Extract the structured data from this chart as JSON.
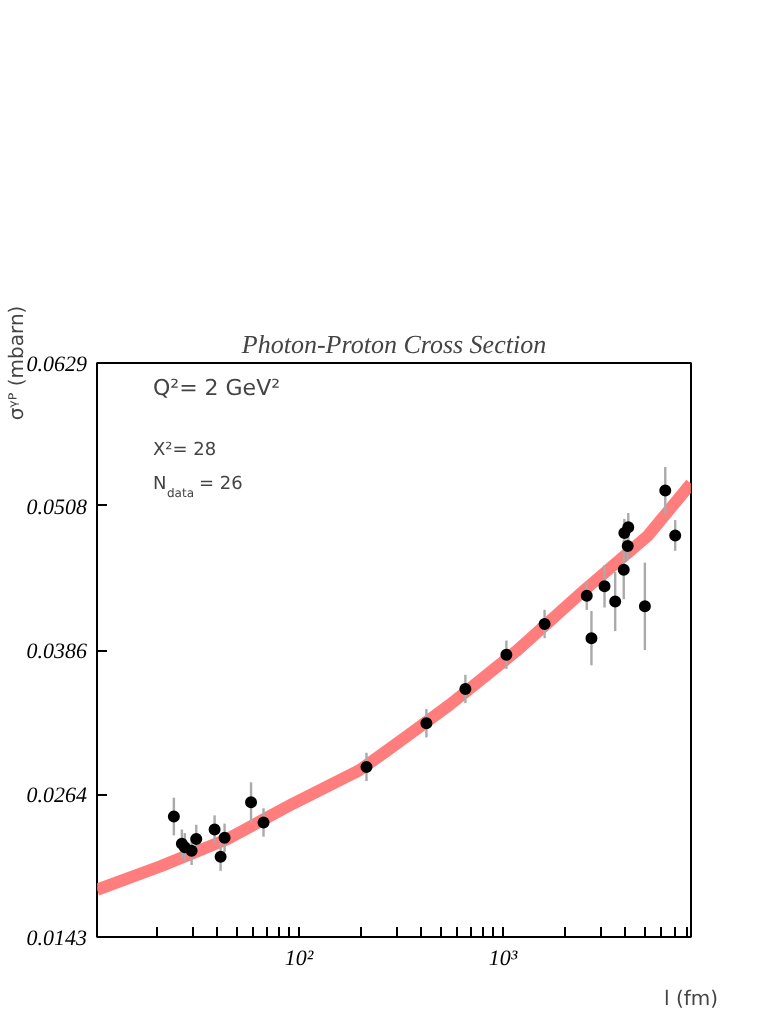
{
  "chart_data": {
    "type": "scatter",
    "title": "Photon-Proton Cross Section",
    "xlabel": "l (fm)",
    "ylabel": "σᵞᴾ (mbarn)",
    "annotations": [
      "Q²=  2     GeV²",
      "X²=    28",
      "N$_{data}$=  26"
    ],
    "log": "x",
    "grid": false,
    "xlim": [
      10.2,
      8360
    ],
    "ylim": [
      0.0143,
      0.0629
    ],
    "xticks": [
      {
        "value": 20,
        "label": null
      },
      {
        "value": 30,
        "label": null
      },
      {
        "value": 40,
        "label": null
      },
      {
        "value": 50,
        "label": null
      },
      {
        "value": 60,
        "label": null
      },
      {
        "value": 70,
        "label": null
      },
      {
        "value": 80,
        "label": null
      },
      {
        "value": 90,
        "label": null
      },
      {
        "value": 100,
        "label": "10²"
      },
      {
        "value": 200,
        "label": null
      },
      {
        "value": 300,
        "label": null
      },
      {
        "value": 400,
        "label": null
      },
      {
        "value": 500,
        "label": null
      },
      {
        "value": 600,
        "label": null
      },
      {
        "value": 700,
        "label": null
      },
      {
        "value": 800,
        "label": null
      },
      {
        "value": 900,
        "label": null
      },
      {
        "value": 1000,
        "label": "10³"
      },
      {
        "value": 2000,
        "label": null
      },
      {
        "value": 3000,
        "label": null
      },
      {
        "value": 4000,
        "label": null
      },
      {
        "value": 5000,
        "label": null
      },
      {
        "value": 6000,
        "label": null
      },
      {
        "value": 7000,
        "label": null
      },
      {
        "value": 8000,
        "label": null
      }
    ],
    "yticks": [
      0.0143,
      0.0264,
      0.0386,
      0.0508,
      0.0629
    ],
    "series": [
      {
        "marker": "circle",
        "color": "#000000",
        "x": [
          24.3,
          26.6,
          27.5,
          29.7,
          31.3,
          38.5,
          41.2,
          43.1,
          58.1,
          66.9,
          214,
          421,
          654,
          1039,
          1600,
          2576,
          2716,
          3148,
          3551,
          3911,
          3938,
          4117,
          4090,
          4966,
          6252,
          6994
        ],
        "values": [
          0.0245,
          0.0222,
          0.0219,
          0.0216,
          0.0226,
          0.0234,
          0.0211,
          0.0227,
          0.0257,
          0.024,
          0.0287,
          0.0324,
          0.0353,
          0.0382,
          0.0408,
          0.0432,
          0.0396,
          0.044,
          0.0427,
          0.0454,
          0.0485,
          0.049,
          0.0474,
          0.0423,
          0.0521,
          0.0483
        ],
        "errors": [
          0.0016,
          0.0012,
          0.0012,
          0.0012,
          0.0012,
          0.0012,
          0.0012,
          0.0012,
          0.0017,
          0.0012,
          0.0012,
          0.0012,
          0.0012,
          0.0012,
          0.0012,
          0.0012,
          0.0023,
          0.0018,
          0.0025,
          0.0025,
          0.0012,
          0.0012,
          0.0012,
          0.0037,
          0.002,
          0.0013
        ]
      },
      {
        "type": "line",
        "color": "#ff6666",
        "x": [
          10.2,
          21.0,
          44.5,
          93.5,
          197,
          261,
          357,
          551,
          1161,
          2443,
          5152,
          8360
        ],
        "values": [
          0.0183,
          0.0203,
          0.0226,
          0.0256,
          0.0284,
          0.0299,
          0.0316,
          0.034,
          0.0385,
          0.0435,
          0.0483,
          0.0527
        ]
      }
    ]
  }
}
